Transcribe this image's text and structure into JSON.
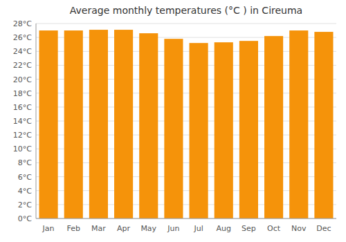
{
  "chart_data": {
    "type": "bar",
    "title": "Average monthly temperatures (°C ) in Cireuma",
    "categories": [
      "Jan",
      "Feb",
      "Mar",
      "Apr",
      "May",
      "Jun",
      "Jul",
      "Aug",
      "Sep",
      "Oct",
      "Nov",
      "Dec"
    ],
    "values": [
      27.0,
      27.0,
      27.1,
      27.1,
      26.6,
      25.8,
      25.2,
      25.3,
      25.5,
      26.2,
      27.0,
      26.8
    ],
    "color": "#F5930A",
    "ylim": [
      0,
      28
    ],
    "yticks": [
      {
        "value": 0,
        "label": "0°C"
      },
      {
        "value": 2,
        "label": "2°C"
      },
      {
        "value": 4,
        "label": "4°C"
      },
      {
        "value": 6,
        "label": "6°C"
      },
      {
        "value": 8,
        "label": "8°C"
      },
      {
        "value": 10,
        "label": "10°C"
      },
      {
        "value": 12,
        "label": "12°C"
      },
      {
        "value": 14,
        "label": "14°C"
      },
      {
        "value": 16,
        "label": "16°C"
      },
      {
        "value": 18,
        "label": "18°C"
      },
      {
        "value": 20,
        "label": "20°C"
      },
      {
        "value": 22,
        "label": "22°C"
      },
      {
        "value": 24,
        "label": "24°C"
      },
      {
        "value": 26,
        "label": "26°C"
      },
      {
        "value": 28,
        "label": "28°C"
      }
    ],
    "grid": true
  }
}
